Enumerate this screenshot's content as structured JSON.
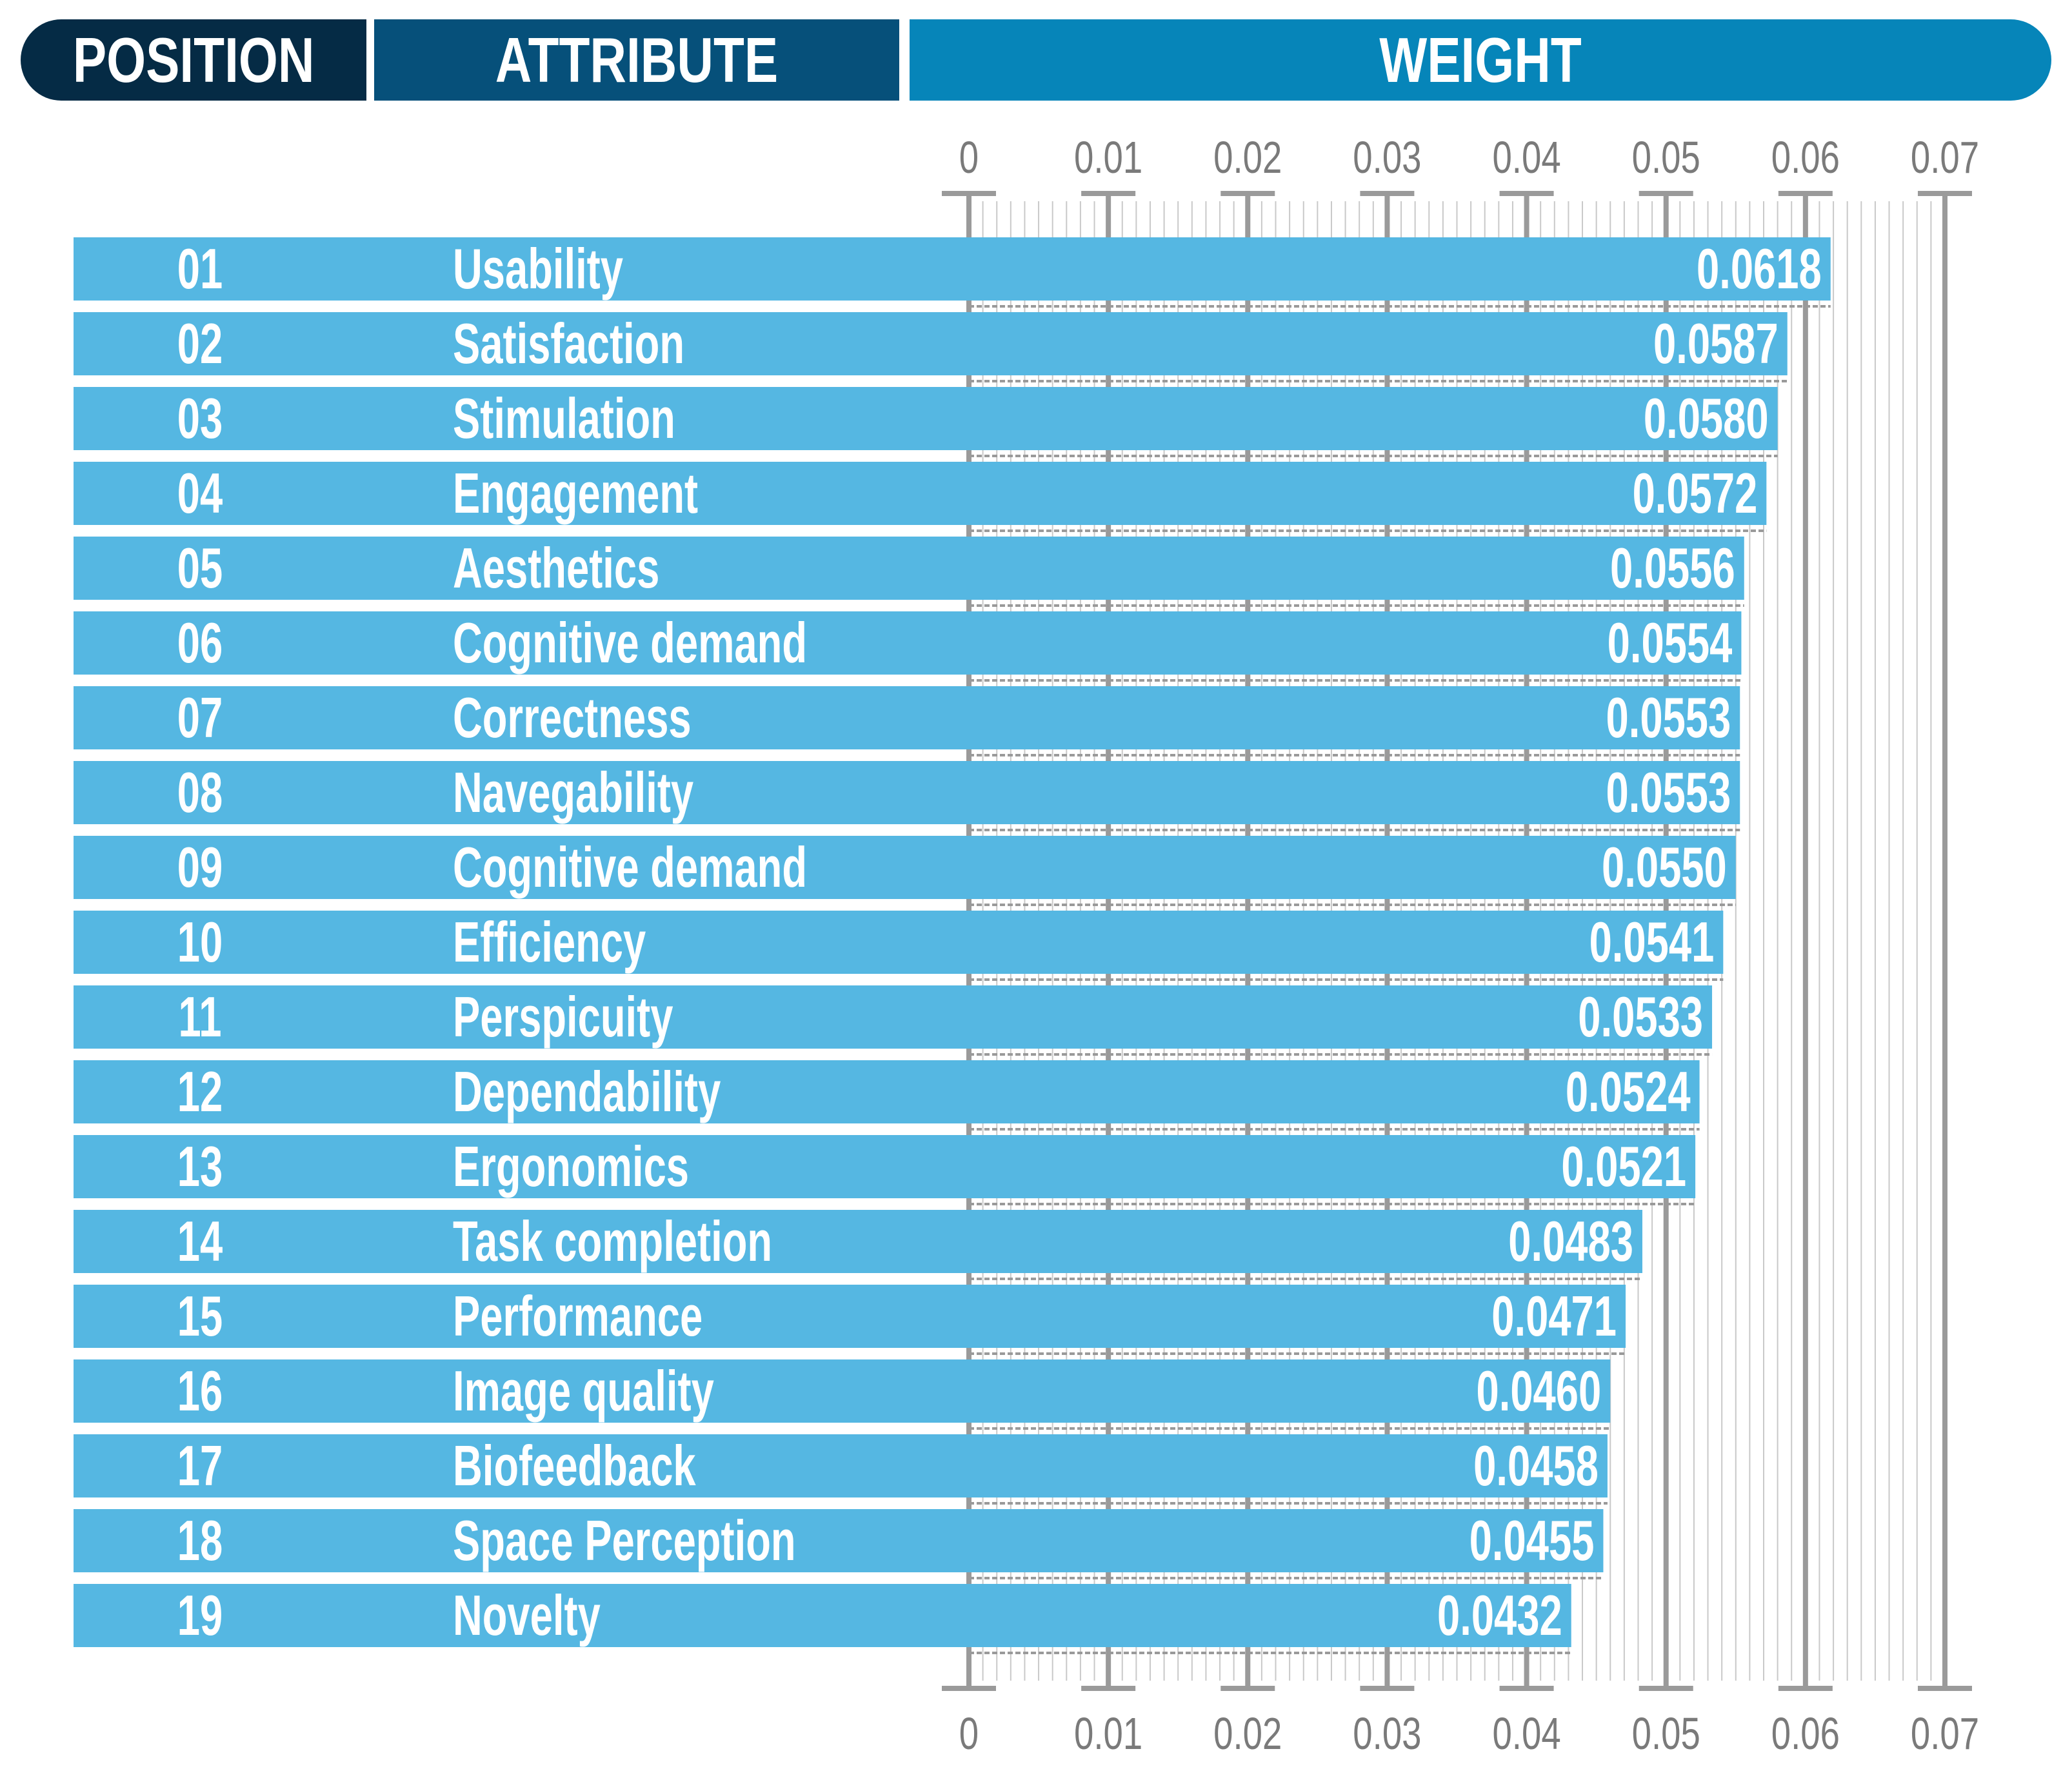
{
  "header": {
    "position_label": "POSITION",
    "attribute_label": "ATTRIBUTE",
    "weight_label": "WEIGHT"
  },
  "colors": {
    "position_header": "#052b45",
    "attribute_header": "#06507a",
    "weight_header": "#0685b9",
    "bar": "#55b7e2",
    "grid": "#9a9a9a",
    "tick_label": "#7a7a7a"
  },
  "chart_data": {
    "type": "bar",
    "orientation": "horizontal",
    "title": "",
    "xlabel": "WEIGHT",
    "ylabel": "",
    "xlim": [
      0,
      0.07
    ],
    "ticks": [
      "0",
      "0.01",
      "0.02",
      "0.03",
      "0.04",
      "0.05",
      "0.06",
      "0.07"
    ],
    "tick_values": [
      0,
      0.01,
      0.02,
      0.03,
      0.04,
      0.05,
      0.06,
      0.07
    ],
    "rows": [
      {
        "position": "01",
        "attribute": "Usability",
        "value": 0.0618,
        "label": "0.0618"
      },
      {
        "position": "02",
        "attribute": "Satisfaction",
        "value": 0.0587,
        "label": "0.0587"
      },
      {
        "position": "03",
        "attribute": "Stimulation",
        "value": 0.058,
        "label": "0.0580"
      },
      {
        "position": "04",
        "attribute": "Engagement",
        "value": 0.0572,
        "label": "0.0572"
      },
      {
        "position": "05",
        "attribute": "Aesthetics",
        "value": 0.0556,
        "label": "0.0556"
      },
      {
        "position": "06",
        "attribute": "Cognitive demand",
        "value": 0.0554,
        "label": "0.0554"
      },
      {
        "position": "07",
        "attribute": "Correctness",
        "value": 0.0553,
        "label": "0.0553"
      },
      {
        "position": "08",
        "attribute": "Navegability",
        "value": 0.0553,
        "label": "0.0553"
      },
      {
        "position": "09",
        "attribute": "Cognitive demand",
        "value": 0.055,
        "label": "0.0550"
      },
      {
        "position": "10",
        "attribute": "Efficiency",
        "value": 0.0541,
        "label": "0.0541"
      },
      {
        "position": "11",
        "attribute": "Perspicuity",
        "value": 0.0533,
        "label": "0.0533"
      },
      {
        "position": "12",
        "attribute": "Dependability",
        "value": 0.0524,
        "label": "0.0524"
      },
      {
        "position": "13",
        "attribute": "Ergonomics",
        "value": 0.0521,
        "label": "0.0521"
      },
      {
        "position": "14",
        "attribute": "Task completion",
        "value": 0.0483,
        "label": "0.0483"
      },
      {
        "position": "15",
        "attribute": "Performance",
        "value": 0.0471,
        "label": "0.0471"
      },
      {
        "position": "16",
        "attribute": "Image quality",
        "value": 0.046,
        "label": "0.0460"
      },
      {
        "position": "17",
        "attribute": "Biofeedback",
        "value": 0.0458,
        "label": "0.0458"
      },
      {
        "position": "18",
        "attribute": "Space Perception",
        "value": 0.0455,
        "label": "0.0455"
      },
      {
        "position": "19",
        "attribute": "Novelty",
        "value": 0.0432,
        "label": "0.0432"
      }
    ]
  }
}
